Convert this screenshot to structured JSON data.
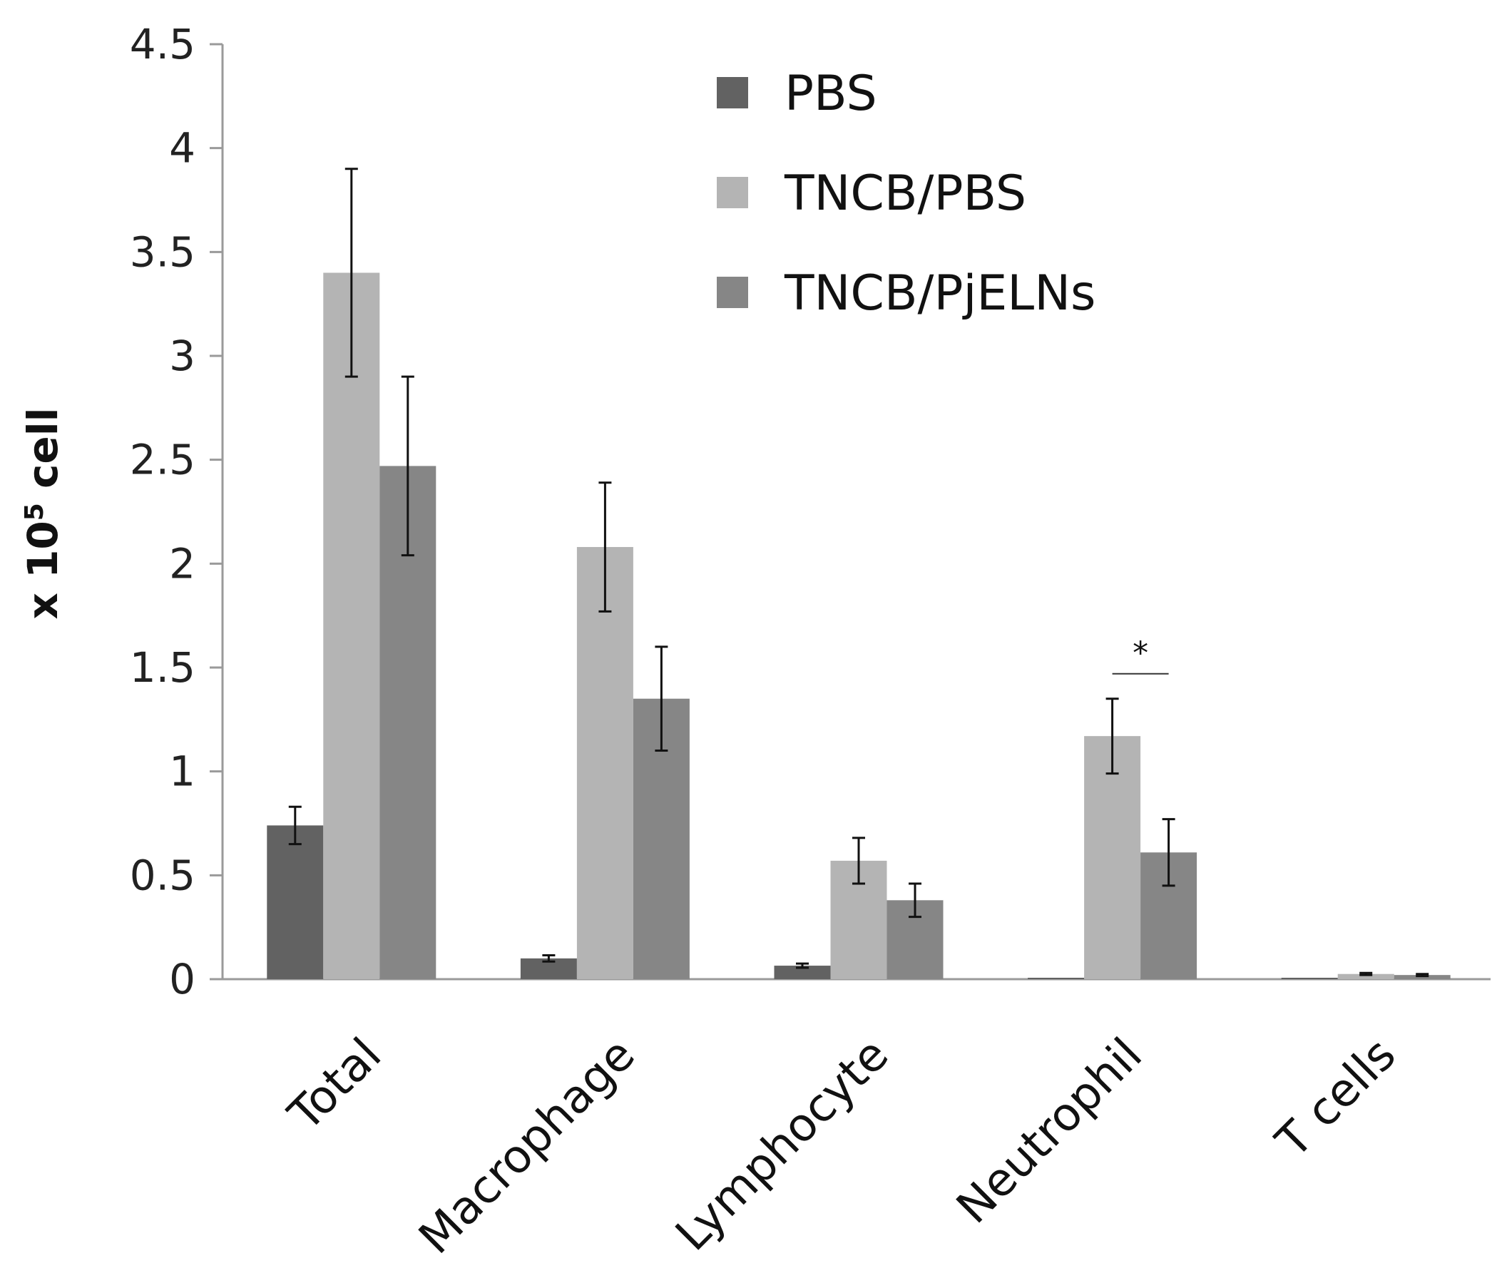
{
  "chart_data": {
    "type": "bar",
    "title": "",
    "xlabel": "",
    "ylabel": "x 10",
    "ylabel_superscript": "5",
    "ylabel_suffix": " cell",
    "ylim": [
      0,
      4.5
    ],
    "yticks": [
      0,
      0.5,
      1,
      1.5,
      2,
      2.5,
      3,
      3.5,
      4,
      4.5
    ],
    "ytick_labels": [
      "0",
      "0.5",
      "1",
      "1.5",
      "2",
      "2.5",
      "3",
      "3.5",
      "4",
      "4.5"
    ],
    "categories": [
      "Total",
      "Macrophage",
      "Lymphocyte",
      "Neutrophil",
      "T cells"
    ],
    "series": [
      {
        "name": "PBS",
        "color": "#626262",
        "values": [
          0.74,
          0.1,
          0.065,
          0.005,
          0.005
        ],
        "errors": [
          0.09,
          0.015,
          0.01,
          0.0,
          0.0
        ]
      },
      {
        "name": "TNCB/PBS",
        "color": "#b4b4b4",
        "values": [
          3.4,
          2.08,
          0.57,
          1.17,
          0.025
        ],
        "errors": [
          0.5,
          0.31,
          0.11,
          0.18,
          0.005
        ]
      },
      {
        "name": "TNCB/PjELNs",
        "color": "#868686",
        "values": [
          2.47,
          1.35,
          0.38,
          0.61,
          0.02
        ],
        "errors": [
          0.43,
          0.25,
          0.08,
          0.16,
          0.005
        ]
      }
    ],
    "legend_position": "top-right",
    "annotations": [
      {
        "text": "*",
        "category": "Neutrophil",
        "between": [
          "TNCB/PBS",
          "TNCB/PjELNs"
        ],
        "y": 1.47
      }
    ]
  }
}
